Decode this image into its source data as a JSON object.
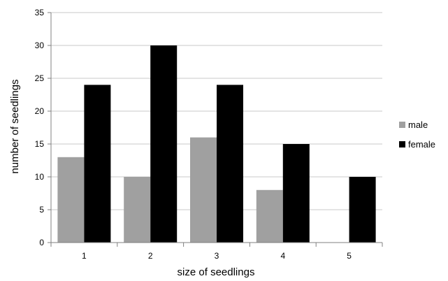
{
  "chart_data": {
    "type": "bar",
    "title": "",
    "xlabel": "size of seedlings",
    "ylabel": "number of seedlings",
    "categories": [
      "1",
      "2",
      "3",
      "4",
      "5"
    ],
    "series": [
      {
        "name": "male",
        "values": [
          13,
          10,
          16,
          8,
          0
        ],
        "color": "#a0a0a0"
      },
      {
        "name": "female",
        "values": [
          24,
          30,
          24,
          15,
          10
        ],
        "color": "#000000"
      }
    ],
    "ylim": [
      0,
      35
    ],
    "yticks": [
      0,
      5,
      10,
      15,
      20,
      25,
      30,
      35
    ],
    "grid": true,
    "legend": "right"
  }
}
